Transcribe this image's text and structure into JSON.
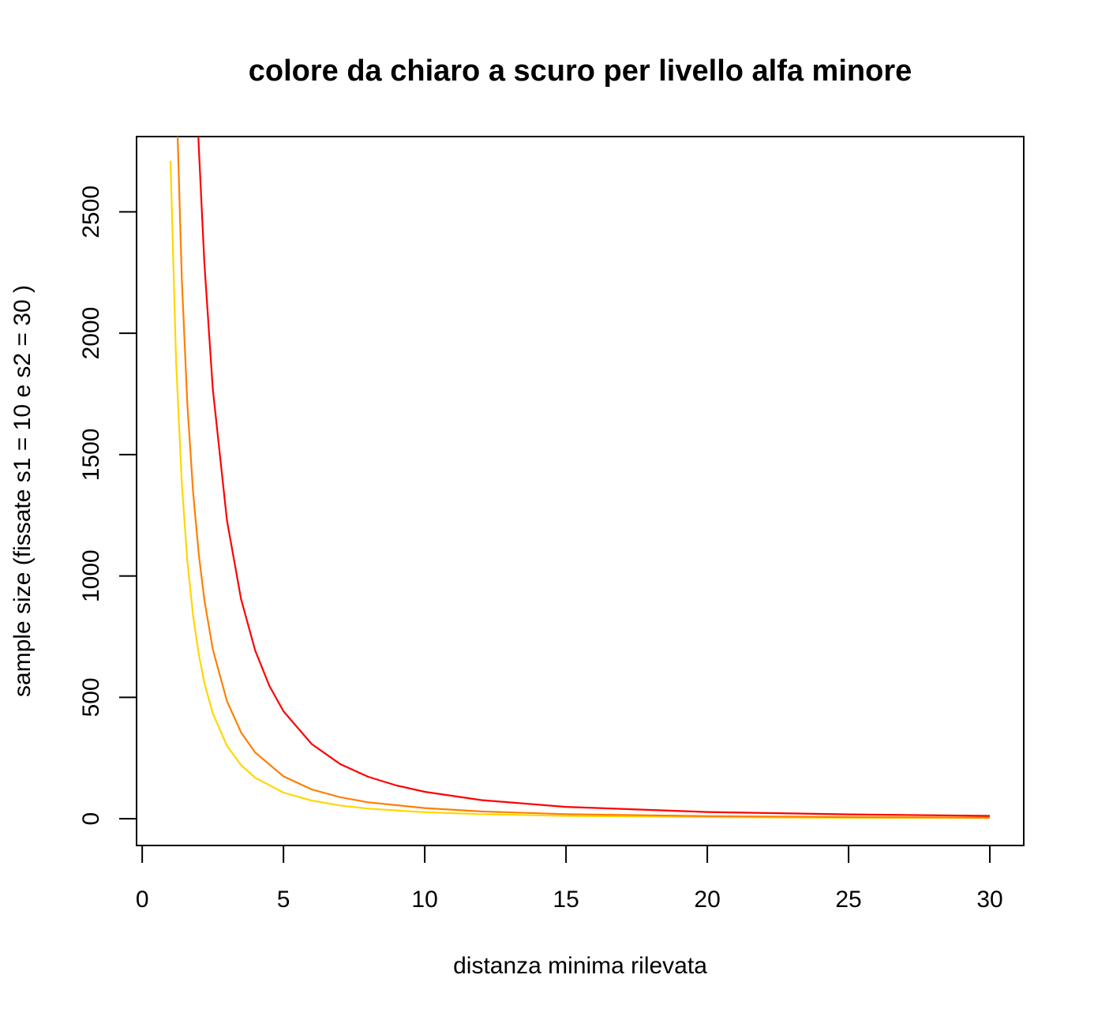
{
  "chart_data": {
    "type": "line",
    "title": "colore da chiaro a scuro per livello alfa minore",
    "xlabel": "distanza minima rilevata",
    "ylabel": "sample size (fissate s1 = 10 e s2 = 30 )",
    "xlim": [
      -0.2,
      31.2
    ],
    "ylim": [
      -110,
      2810
    ],
    "xticks": [
      0,
      5,
      10,
      15,
      20,
      25,
      30
    ],
    "yticks": [
      0,
      500,
      1000,
      1500,
      2000,
      2500
    ],
    "grid": false,
    "legend": "none",
    "series": [
      {
        "color": "#FFD700",
        "x": [
          1,
          1.2,
          1.4,
          1.6,
          1.8,
          2,
          2.2,
          2.5,
          3,
          3.5,
          4,
          5,
          6,
          7,
          8,
          10,
          12,
          15,
          20,
          25,
          30
        ],
        "values": [
          2710,
          1882,
          1383,
          1059,
          837,
          678,
          560,
          434,
          301,
          221,
          169,
          108,
          75,
          55,
          42,
          27,
          19,
          12,
          7,
          4,
          3
        ]
      },
      {
        "color": "#FF7F00",
        "x": [
          1.2,
          1.4,
          1.6,
          1.8,
          2,
          2.2,
          2.5,
          3,
          3.5,
          4,
          5,
          6,
          7,
          8,
          10,
          12,
          15,
          20,
          25,
          30
        ],
        "values": [
          3030,
          2226,
          1704,
          1347,
          1091,
          902,
          698,
          485,
          356,
          273,
          175,
          121,
          89,
          68,
          44,
          30,
          19,
          11,
          7,
          5
        ]
      },
      {
        "color": "#FF0000",
        "x": [
          1.95,
          2,
          2.2,
          2.5,
          3,
          3.5,
          4,
          4.5,
          5,
          6,
          7,
          8,
          9,
          10,
          12,
          15,
          20,
          25,
          30
        ],
        "values": [
          2920,
          2770,
          2290,
          1770,
          1230,
          905,
          693,
          548,
          443,
          308,
          226,
          173,
          137,
          111,
          77,
          49,
          28,
          18,
          12
        ]
      }
    ]
  }
}
